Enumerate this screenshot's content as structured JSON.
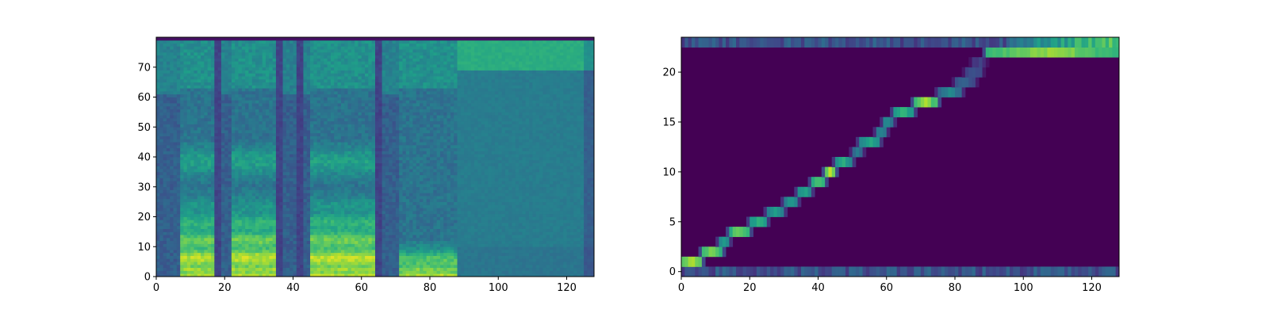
{
  "chart_data": [
    {
      "type": "heatmap",
      "title": "",
      "xlabel": "",
      "ylabel": "",
      "colormap": "viridis",
      "xlim": [
        0,
        128
      ],
      "ylim": [
        0,
        80
      ],
      "xticks": [
        0,
        20,
        40,
        60,
        80,
        100,
        120
      ],
      "yticks": [
        0,
        10,
        20,
        30,
        40,
        50,
        60,
        70
      ],
      "xtick_labels": [
        "0",
        "20",
        "40",
        "60",
        "80",
        "100",
        "120"
      ],
      "ytick_labels": [
        "0",
        "10",
        "20",
        "30",
        "40",
        "50",
        "60",
        "70"
      ],
      "grid": false,
      "speech_segments": [
        [
          7,
          17
        ],
        [
          22,
          35
        ],
        [
          45,
          64
        ],
        [
          71,
          88
        ]
      ],
      "silence_gaps": [
        [
          17,
          19
        ],
        [
          35,
          37
        ],
        [
          41,
          43
        ],
        [
          64,
          66
        ]
      ],
      "background_region": {
        "x_start": 88,
        "x_end": 128,
        "mid_level": 0.42,
        "top_level": 0.62
      }
    },
    {
      "type": "heatmap",
      "title": "",
      "xlabel": "",
      "ylabel": "",
      "colormap": "viridis",
      "xlim": [
        0,
        128
      ],
      "ylim": [
        -0.5,
        23.5
      ],
      "xticks": [
        0,
        20,
        40,
        60,
        80,
        100,
        120
      ],
      "yticks": [
        0,
        5,
        10,
        15,
        20
      ],
      "xtick_labels": [
        "0",
        "20",
        "40",
        "60",
        "80",
        "100",
        "120"
      ],
      "ytick_labels": [
        "0",
        "5",
        "10",
        "15",
        "20"
      ],
      "grid": false,
      "alignment_path": [
        {
          "row": 1,
          "x_start": 0,
          "x_end": 6,
          "strength": 0.9
        },
        {
          "row": 2,
          "x_start": 6,
          "x_end": 12,
          "strength": 0.85
        },
        {
          "row": 3,
          "x_start": 11,
          "x_end": 14,
          "strength": 0.55
        },
        {
          "row": 4,
          "x_start": 14,
          "x_end": 20,
          "strength": 0.8
        },
        {
          "row": 5,
          "x_start": 20,
          "x_end": 25,
          "strength": 0.65
        },
        {
          "row": 6,
          "x_start": 25,
          "x_end": 30,
          "strength": 0.55
        },
        {
          "row": 7,
          "x_start": 30,
          "x_end": 34,
          "strength": 0.55
        },
        {
          "row": 8,
          "x_start": 34,
          "x_end": 38,
          "strength": 0.6
        },
        {
          "row": 9,
          "x_start": 38,
          "x_end": 42,
          "strength": 0.75
        },
        {
          "row": 10,
          "x_start": 42,
          "x_end": 45,
          "strength": 0.9
        },
        {
          "row": 11,
          "x_start": 45,
          "x_end": 50,
          "strength": 0.6
        },
        {
          "row": 12,
          "x_start": 50,
          "x_end": 53,
          "strength": 0.4
        },
        {
          "row": 13,
          "x_start": 52,
          "x_end": 58,
          "strength": 0.6
        },
        {
          "row": 14,
          "x_start": 57,
          "x_end": 60,
          "strength": 0.45
        },
        {
          "row": 15,
          "x_start": 59,
          "x_end": 62,
          "strength": 0.5
        },
        {
          "row": 16,
          "x_start": 62,
          "x_end": 68,
          "strength": 0.65
        },
        {
          "row": 17,
          "x_start": 68,
          "x_end": 75,
          "strength": 0.85
        },
        {
          "row": 18,
          "x_start": 75,
          "x_end": 82,
          "strength": 0.45
        },
        {
          "row": 19,
          "x_start": 80,
          "x_end": 86,
          "strength": 0.3
        },
        {
          "row": 20,
          "x_start": 83,
          "x_end": 88,
          "strength": 0.25
        },
        {
          "row": 21,
          "x_start": 85,
          "x_end": 89,
          "strength": 0.2
        },
        {
          "row": 22,
          "x_start": 89,
          "x_end": 128,
          "strength": 0.85
        }
      ],
      "noisy_rows": [
        0,
        23
      ]
    }
  ]
}
